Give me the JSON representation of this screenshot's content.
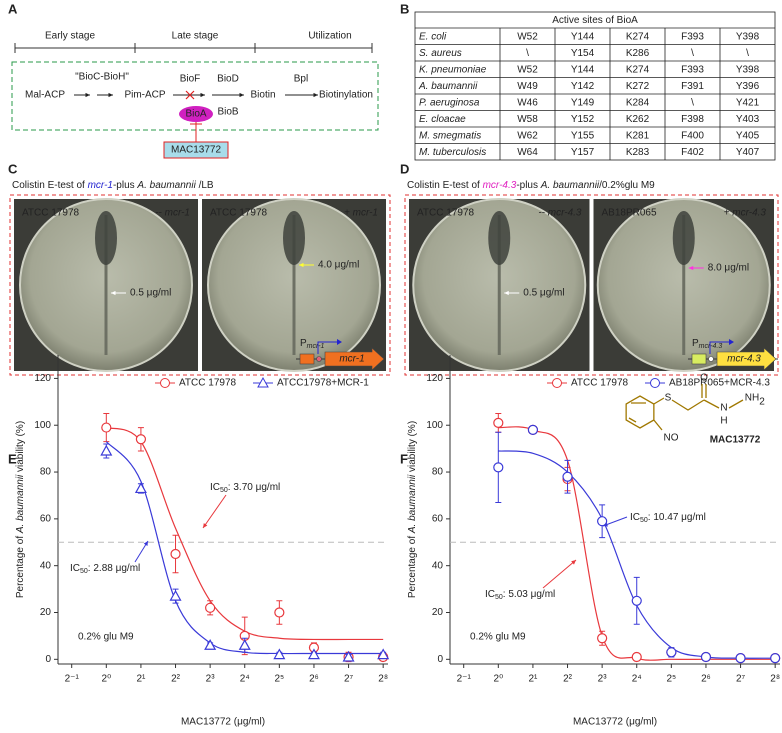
{
  "panel_labels": [
    "A",
    "B",
    "C",
    "D",
    "E",
    "F"
  ],
  "pathway": {
    "stages": [
      {
        "label": "Early stage",
        "color": "#2323d0"
      },
      {
        "label": "Late stage",
        "color": "#e020c0"
      },
      {
        "label": "Utilization",
        "color": "#222222"
      }
    ],
    "mal_acp": "Mal-ACP",
    "bioc_bioh": "\"BioC-BioH\"",
    "pim_acp": "Pim-ACP",
    "biof": "BioF",
    "biod": "BioD",
    "biob": "BioB",
    "biotin": "Biotin",
    "bpl": "Bpl",
    "biotinylation": "Biotinylation",
    "bioa": "BioA",
    "inhibitor": "MAC13772"
  },
  "table": {
    "title": "Active sites of BioA",
    "highlight_row": 3,
    "highlight_color": "#e020c0",
    "rows": [
      [
        "E. coli",
        "W52",
        "Y144",
        "K274",
        "F393",
        "Y398"
      ],
      [
        "S. aureus",
        "\\",
        "Y154",
        "K286",
        "\\",
        "\\"
      ],
      [
        "K. pneumoniae",
        "W52",
        "Y144",
        "K274",
        "F393",
        "Y398"
      ],
      [
        "A. baumannii",
        "W49",
        "Y142",
        "K272",
        "F391",
        "Y396"
      ],
      [
        "P. aeruginosa",
        "W46",
        "Y149",
        "K284",
        "\\",
        "Y421"
      ],
      [
        "E. cloacae",
        "W58",
        "Y152",
        "K262",
        "F398",
        "Y403"
      ],
      [
        "M. smegmatis",
        "W62",
        "Y155",
        "K281",
        "F400",
        "Y405"
      ],
      [
        "M. tuberculosis",
        "W64",
        "Y157",
        "K283",
        "F402",
        "Y407"
      ]
    ]
  },
  "etests": [
    {
      "caption": [
        "Colistin E-test of ",
        "mcr-1",
        "-plus ",
        "A. baumannii",
        " /LB"
      ],
      "gene_color": "#2323d0",
      "plates": [
        {
          "strain": "ATCC 17978",
          "strain_color": "#ffffff",
          "tag": "-- mcr-1",
          "tag_color": "#ffffff",
          "mic": "0.5 μg/ml",
          "mic_color": "#ffffff"
        },
        {
          "strain": "ATCC 17978",
          "strain_color": "#ffffff",
          "tag": "+ mcr-1",
          "tag_color": "#ffff30",
          "mic": "4.0 μg/ml",
          "mic_color": "#ffff30"
        }
      ]
    },
    {
      "caption": [
        "Colistin E-test of ",
        "mcr-4.3",
        "-plus ",
        "A. baumannii",
        "/0.2%glu M9"
      ],
      "gene_color": "#e020c0",
      "plates": [
        {
          "strain": "ATCC 17978",
          "strain_color": "#ffffff",
          "tag": "-- mcr-4.3",
          "tag_color": "#ffffff",
          "mic": "0.5 μg/ml",
          "mic_color": "#ffffff"
        },
        {
          "strain": "AB18PR065",
          "strain_color": "#ff30e0",
          "tag": "+ mcr-4.3",
          "tag_color": "#ff30e0",
          "mic": "8.0 μg/ml",
          "mic_color": "#ff30e0"
        }
      ]
    }
  ],
  "chart_data": [
    {
      "type": "scatter",
      "xscale": "log2",
      "xlabel": "MAC13772 (μg/ml)",
      "ylabel": [
        "Percentage of ",
        "A. baumannii",
        " viability (%)"
      ],
      "xlim": [
        0.38,
        282
      ],
      "ylim": [
        -2,
        130
      ],
      "xticks": [
        {
          "value": 0.5,
          "label": "2⁻¹"
        },
        {
          "value": 1,
          "label": "2⁰"
        },
        {
          "value": 2,
          "label": "2¹"
        },
        {
          "value": 4,
          "label": "2²"
        },
        {
          "value": 8,
          "label": "2³"
        },
        {
          "value": 16,
          "label": "2⁴"
        },
        {
          "value": 32,
          "label": "2⁵"
        },
        {
          "value": 64,
          "label": "2⁶"
        },
        {
          "value": 128,
          "label": "2⁷"
        },
        {
          "value": 256,
          "label": "2⁸"
        }
      ],
      "yticks": [
        0,
        20,
        40,
        60,
        80,
        100,
        120
      ],
      "reference_line": 50,
      "x": [
        1,
        2,
        4,
        8,
        16,
        32,
        64,
        128,
        256
      ],
      "series": [
        {
          "name": "ATCC 17978",
          "color": "#e8383d",
          "marker": "circle",
          "values": [
            99,
            94,
            45,
            22,
            10,
            20,
            5,
            1,
            1
          ],
          "errors": [
            6,
            5,
            8,
            3,
            8,
            5,
            2,
            2,
            1
          ],
          "fit": [
            99,
            93,
            56,
            25,
            12,
            9,
            8.5,
            8.5,
            8.5
          ]
        },
        {
          "name": "ATCC17978+MCR-1",
          "color": "#3a3ad8",
          "marker": "triangle",
          "values": [
            89,
            73,
            27,
            6,
            6,
            2,
            2,
            1,
            2
          ],
          "errors": [
            3,
            2,
            3,
            1,
            3,
            1,
            1,
            1,
            1
          ],
          "fit": [
            93,
            76,
            25,
            7,
            3,
            2.5,
            2.5,
            2.5,
            2.5
          ]
        }
      ],
      "annotations": [
        {
          "text": "IC",
          "sub": "50",
          "rest": ": 3.70 μg/ml",
          "color": "#e8383d"
        },
        {
          "text": "IC",
          "sub": "50",
          "rest": ": 2.88 μg/ml",
          "color": "#3a3ad8"
        }
      ],
      "condition": "0.2% glu M9",
      "promoter": {
        "text": "P",
        "sub": "mcr-1"
      },
      "gene": "mcr-1"
    },
    {
      "type": "scatter",
      "xscale": "log2",
      "xlabel": "MAC13772 (μg/ml)",
      "ylabel": [
        "Percentage of ",
        "A. baumannii",
        " viability (%)"
      ],
      "xlim": [
        0.38,
        282
      ],
      "ylim": [
        -2,
        130
      ],
      "xticks": [
        {
          "value": 0.5,
          "label": "2⁻¹"
        },
        {
          "value": 1,
          "label": "2⁰"
        },
        {
          "value": 2,
          "label": "2¹"
        },
        {
          "value": 4,
          "label": "2²"
        },
        {
          "value": 8,
          "label": "2³"
        },
        {
          "value": 16,
          "label": "2⁴"
        },
        {
          "value": 32,
          "label": "2⁵"
        },
        {
          "value": 64,
          "label": "2⁶"
        },
        {
          "value": 128,
          "label": "2⁷"
        },
        {
          "value": 256,
          "label": "2⁸"
        }
      ],
      "yticks": [
        0,
        20,
        40,
        60,
        80,
        100,
        120
      ],
      "reference_line": 50,
      "x": [
        1,
        2,
        4,
        8,
        16,
        32,
        64,
        128,
        256
      ],
      "series": [
        {
          "name": "ATCC 17978",
          "color": "#e8383d",
          "marker": "circle",
          "values": [
            101,
            98,
            77,
            9,
            1,
            3,
            1,
            0.5,
            0.5
          ],
          "errors": [
            4,
            1,
            5,
            3,
            1,
            1,
            1,
            1,
            1
          ],
          "fit": [
            99,
            98,
            85,
            10,
            0.5,
            0,
            0,
            0,
            0
          ]
        },
        {
          "name": "AB18PR065+MCR-4.3",
          "color": "#3a3ad8",
          "marker": "circle",
          "values": [
            82,
            98,
            78,
            59,
            25,
            3,
            1,
            0.5,
            0.5
          ],
          "errors": [
            15,
            1,
            7,
            7,
            10,
            2,
            1,
            1,
            1
          ],
          "fit": [
            89,
            88,
            80,
            60,
            23,
            5,
            1,
            0.5,
            0.5
          ]
        }
      ],
      "annotations": [
        {
          "text": "IC",
          "sub": "50",
          "rest": ": 5.03 μg/ml",
          "color": "#e8383d"
        },
        {
          "text": "IC",
          "sub": "50",
          "rest": ": 10.47 μg/ml",
          "color": "#3a3ad8"
        }
      ],
      "condition": "0.2% glu M9",
      "promoter": {
        "text": "P",
        "sub": "mcr-4.3"
      },
      "gene": "mcr-4.3",
      "compound": {
        "atoms": [
          "S",
          "O",
          "N",
          "H",
          "NH",
          "2",
          "NO"
        ],
        "name": "MAC13772"
      }
    }
  ]
}
